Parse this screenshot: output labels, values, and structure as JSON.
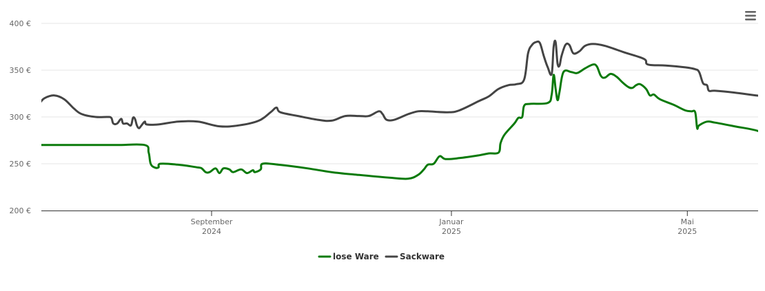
{
  "colors": {
    "lose_ware": "#0a7a0a",
    "sackware": "#444444",
    "grid": "#e6e6e6",
    "axis": "#333333",
    "menu_icon": "#666666"
  },
  "menu": {
    "icon": "hamburger-menu-icon"
  },
  "chart_data": {
    "type": "line",
    "title": "",
    "xlabel": "",
    "ylabel": "",
    "ylim": [
      200,
      400
    ],
    "xlim": [
      "2024-06-01",
      "2025-05-31"
    ],
    "y_ticks": [
      {
        "value": 200,
        "label": "200 €"
      },
      {
        "value": 250,
        "label": "250 €"
      },
      {
        "value": 300,
        "label": "300 €"
      },
      {
        "value": 350,
        "label": "350 €"
      },
      {
        "value": 400,
        "label": "400 €"
      }
    ],
    "x_ticks": [
      {
        "date": "2024-09-01",
        "month": "September",
        "year": "2024"
      },
      {
        "date": "2025-01-01",
        "month": "Januar",
        "year": "2025"
      },
      {
        "date": "2025-05-01",
        "month": "Mai",
        "year": "2025"
      }
    ],
    "grid": true,
    "legend_position": "bottom-center",
    "series": [
      {
        "name": "lose Ware",
        "color": "#0a7a0a",
        "points": [
          [
            "2024-06-01",
            270
          ],
          [
            "2024-06-15",
            270
          ],
          [
            "2024-07-01",
            270
          ],
          [
            "2024-07-15",
            270
          ],
          [
            "2024-07-29",
            270
          ],
          [
            "2024-07-31",
            262
          ],
          [
            "2024-08-01",
            250
          ],
          [
            "2024-08-03",
            246
          ],
          [
            "2024-08-05",
            246
          ],
          [
            "2024-08-06",
            250
          ],
          [
            "2024-08-15",
            249
          ],
          [
            "2024-08-25",
            246
          ],
          [
            "2024-08-27",
            245
          ],
          [
            "2024-08-29",
            241
          ],
          [
            "2024-08-31",
            241
          ],
          [
            "2024-09-03",
            245
          ],
          [
            "2024-09-05",
            240
          ],
          [
            "2024-09-07",
            245
          ],
          [
            "2024-09-10",
            244
          ],
          [
            "2024-09-12",
            241
          ],
          [
            "2024-09-16",
            244
          ],
          [
            "2024-09-19",
            240
          ],
          [
            "2024-09-22",
            243
          ],
          [
            "2024-09-23",
            241
          ],
          [
            "2024-09-26",
            244
          ],
          [
            "2024-09-27",
            250
          ],
          [
            "2024-10-05",
            249
          ],
          [
            "2024-10-20",
            245
          ],
          [
            "2024-11-01",
            241
          ],
          [
            "2024-11-15",
            238
          ],
          [
            "2024-12-01",
            235
          ],
          [
            "2024-12-10",
            234
          ],
          [
            "2024-12-15",
            238
          ],
          [
            "2024-12-18",
            244
          ],
          [
            "2024-12-20",
            249
          ],
          [
            "2024-12-23",
            250
          ],
          [
            "2024-12-26",
            258
          ],
          [
            "2024-12-29",
            255
          ],
          [
            "2025-01-05",
            256
          ],
          [
            "2025-01-15",
            259
          ],
          [
            "2025-01-20",
            261
          ],
          [
            "2025-01-25",
            262
          ],
          [
            "2025-01-26",
            272
          ],
          [
            "2025-01-28",
            281
          ],
          [
            "2025-02-02",
            293
          ],
          [
            "2025-02-04",
            299
          ],
          [
            "2025-02-06",
            300
          ],
          [
            "2025-02-07",
            312
          ],
          [
            "2025-02-10",
            314
          ],
          [
            "2025-02-19",
            315
          ],
          [
            "2025-02-21",
            324
          ],
          [
            "2025-02-22",
            345
          ],
          [
            "2025-02-23",
            330
          ],
          [
            "2025-02-24",
            318
          ],
          [
            "2025-02-25",
            327
          ],
          [
            "2025-02-27",
            348
          ],
          [
            "2025-03-03",
            348
          ],
          [
            "2025-03-06",
            347
          ],
          [
            "2025-03-10",
            352
          ],
          [
            "2025-03-14",
            356
          ],
          [
            "2025-03-16",
            354
          ],
          [
            "2025-03-18",
            344
          ],
          [
            "2025-03-20",
            342
          ],
          [
            "2025-03-23",
            346
          ],
          [
            "2025-03-26",
            343
          ],
          [
            "2025-03-29",
            337
          ],
          [
            "2025-04-01",
            332
          ],
          [
            "2025-04-03",
            331
          ],
          [
            "2025-04-05",
            334
          ],
          [
            "2025-04-07",
            335
          ],
          [
            "2025-04-10",
            330
          ],
          [
            "2025-04-12",
            323
          ],
          [
            "2025-04-14",
            324
          ],
          [
            "2025-04-17",
            319
          ],
          [
            "2025-04-24",
            313
          ],
          [
            "2025-04-30",
            307
          ],
          [
            "2025-05-03",
            306
          ],
          [
            "2025-05-05",
            305
          ],
          [
            "2025-05-06",
            288
          ],
          [
            "2025-05-07",
            291
          ],
          [
            "2025-05-11",
            295
          ],
          [
            "2025-05-15",
            294
          ],
          [
            "2025-05-25",
            290
          ],
          [
            "2025-06-06",
            285
          ],
          [
            "2025-06-14",
            277
          ],
          [
            "2025-06-17",
            279
          ]
        ]
      },
      {
        "name": "Sackware",
        "color": "#444444",
        "points": [
          [
            "2024-06-01",
            318
          ],
          [
            "2024-06-02",
            313
          ],
          [
            "2024-06-05",
            314
          ],
          [
            "2024-06-08",
            320
          ],
          [
            "2024-06-13",
            323
          ],
          [
            "2024-06-18",
            319
          ],
          [
            "2024-06-23",
            309
          ],
          [
            "2024-06-27",
            303
          ],
          [
            "2024-07-04",
            300
          ],
          [
            "2024-07-10",
            300
          ],
          [
            "2024-07-12",
            299
          ],
          [
            "2024-07-13",
            293
          ],
          [
            "2024-07-15",
            293
          ],
          [
            "2024-07-17",
            298
          ],
          [
            "2024-07-18",
            293
          ],
          [
            "2024-07-20",
            293
          ],
          [
            "2024-07-22",
            291
          ],
          [
            "2024-07-23",
            299
          ],
          [
            "2024-07-24",
            298
          ],
          [
            "2024-07-25",
            291
          ],
          [
            "2024-07-26",
            288
          ],
          [
            "2024-07-27",
            290
          ],
          [
            "2024-07-29",
            295
          ],
          [
            "2024-07-30",
            292
          ],
          [
            "2024-08-05",
            292
          ],
          [
            "2024-08-15",
            295
          ],
          [
            "2024-08-25",
            295
          ],
          [
            "2024-09-05",
            290
          ],
          [
            "2024-09-15",
            291
          ],
          [
            "2024-09-25",
            296
          ],
          [
            "2024-10-01",
            305
          ],
          [
            "2024-10-04",
            310
          ],
          [
            "2024-10-06",
            305
          ],
          [
            "2024-10-15",
            301
          ],
          [
            "2024-10-25",
            297
          ],
          [
            "2024-11-01",
            296
          ],
          [
            "2024-11-08",
            301
          ],
          [
            "2024-11-15",
            301
          ],
          [
            "2024-11-20",
            301
          ],
          [
            "2024-11-25",
            306
          ],
          [
            "2024-11-27",
            303
          ],
          [
            "2024-11-29",
            297
          ],
          [
            "2024-12-03",
            297
          ],
          [
            "2024-12-10",
            303
          ],
          [
            "2024-12-15",
            306
          ],
          [
            "2024-12-20",
            306
          ],
          [
            "2024-12-30",
            305
          ],
          [
            "2025-01-05",
            307
          ],
          [
            "2025-01-15",
            317
          ],
          [
            "2025-01-20",
            322
          ],
          [
            "2025-01-25",
            330
          ],
          [
            "2025-01-30",
            334
          ],
          [
            "2025-02-03",
            335
          ],
          [
            "2025-02-07",
            340
          ],
          [
            "2025-02-09",
            368
          ],
          [
            "2025-02-11",
            377
          ],
          [
            "2025-02-13",
            380
          ],
          [
            "2025-02-15",
            379
          ],
          [
            "2025-02-17",
            365
          ],
          [
            "2025-02-19",
            353
          ],
          [
            "2025-02-21",
            346
          ],
          [
            "2025-02-22",
            375
          ],
          [
            "2025-02-23",
            380
          ],
          [
            "2025-02-24",
            357
          ],
          [
            "2025-02-25",
            355
          ],
          [
            "2025-02-26",
            365
          ],
          [
            "2025-02-28",
            377
          ],
          [
            "2025-03-02",
            377
          ],
          [
            "2025-03-04",
            368
          ],
          [
            "2025-03-07",
            370
          ],
          [
            "2025-03-10",
            376
          ],
          [
            "2025-03-14",
            378
          ],
          [
            "2025-03-20",
            376
          ],
          [
            "2025-03-30",
            369
          ],
          [
            "2025-04-09",
            362
          ],
          [
            "2025-04-11",
            356
          ],
          [
            "2025-04-20",
            355
          ],
          [
            "2025-04-30",
            353
          ],
          [
            "2025-05-05",
            351
          ],
          [
            "2025-05-07",
            348
          ],
          [
            "2025-05-09",
            336
          ],
          [
            "2025-05-11",
            334
          ],
          [
            "2025-05-12",
            328
          ],
          [
            "2025-05-15",
            328
          ],
          [
            "2025-05-25",
            326
          ],
          [
            "2025-06-05",
            323
          ],
          [
            "2025-06-12",
            322
          ],
          [
            "2025-06-17",
            319
          ]
        ]
      }
    ]
  }
}
